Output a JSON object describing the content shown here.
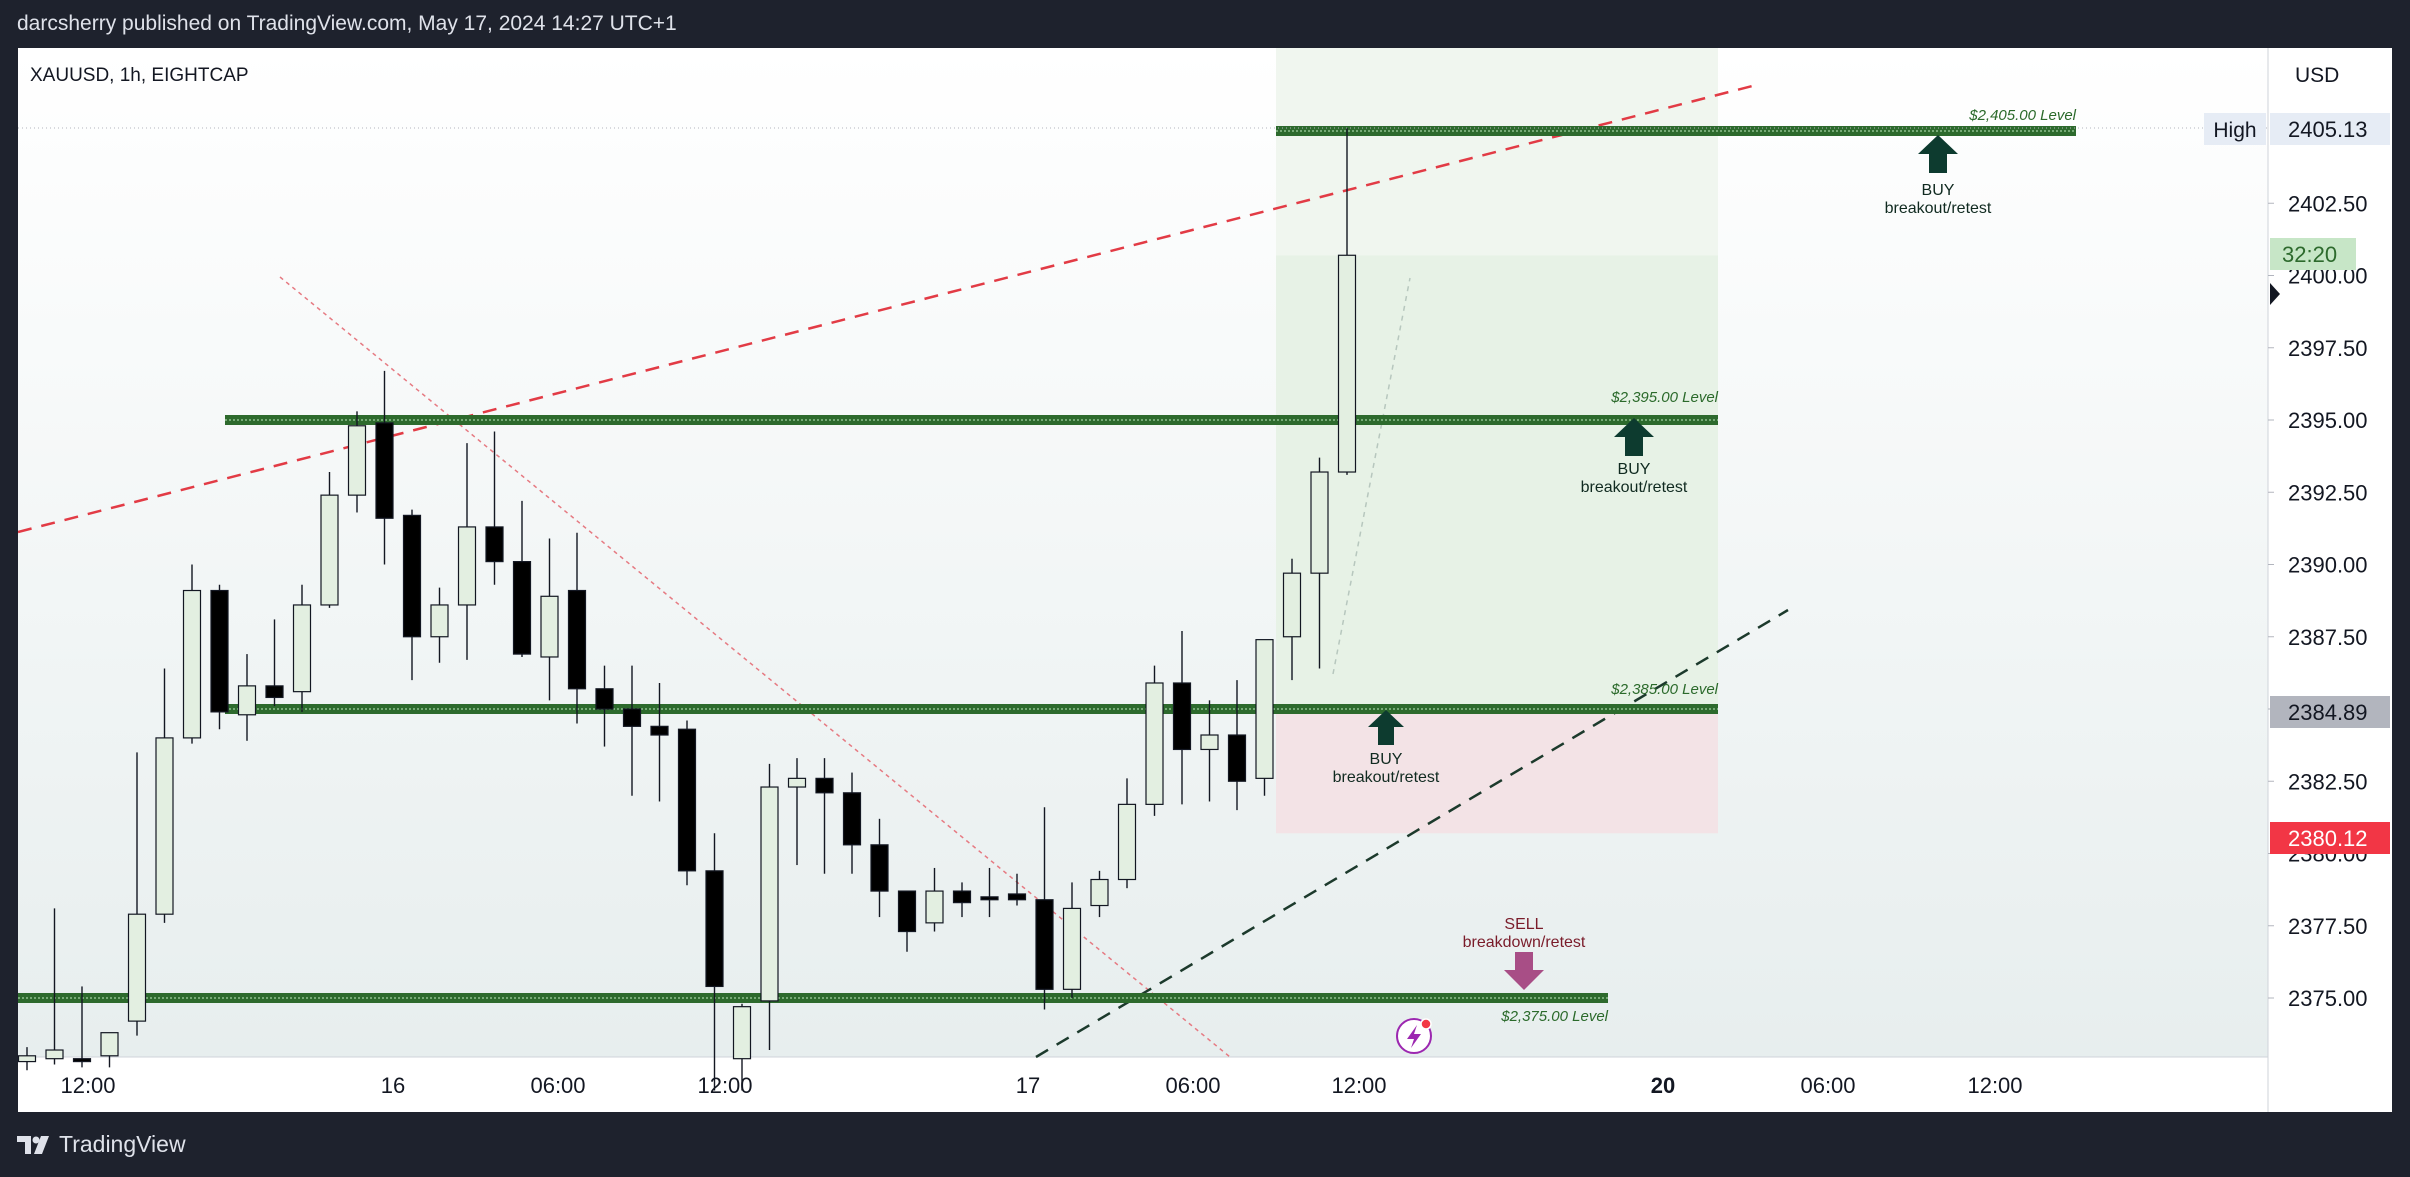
{
  "banner": {
    "text": "darcsherry published on TradingView.com, May 17, 2024 14:27 UTC+1"
  },
  "brand": {
    "name": "TradingView"
  },
  "symbol": {
    "label": "XAUUSD, 1h, EIGHTCAP"
  },
  "currency_button": "USD",
  "price_labels": {
    "high_tag": "High",
    "high_value": "2405.13",
    "countdown": "32:20",
    "last_price": "2384.89",
    "red_price": "2380.12"
  },
  "annotations": {
    "level_2405": "$2,405.00 Level",
    "level_2395": "$2,395.00 Level",
    "level_2385": "$2,385.00 Level",
    "level_2375": "$2,375.00 Level",
    "buy": "BUY",
    "breakout_retest": "breakout/retest",
    "sell": "SELL",
    "breakdown_retest": "breakdown/retest"
  },
  "colors": {
    "banner_bg": "#1e222d",
    "plot_bg_top": "#ffffff",
    "plot_bg_bottom": "#e9efef",
    "candle_up_fill": "#e3efe1",
    "candle_down_fill": "#000000",
    "level_green": "#2d6a2d",
    "trend_red": "#e23b45",
    "trend_dark": "#1c3a2c",
    "profit_zone": "#e7f2e6",
    "loss_zone": "#f3e3e6",
    "buy_arrow": "#0d3b2f",
    "sell_arrow": "#a84e86",
    "price_red": "#f23645",
    "price_gray": "#b2b5be",
    "countdown_green": "#c7e6c7"
  },
  "chart_data": {
    "type": "candlestick",
    "symbol": "XAUUSD",
    "interval": "1h",
    "x_tick_labels": [
      "12:00",
      "16",
      "06:00",
      "12:00",
      "17",
      "06:00",
      "12:00",
      "20",
      "06:00",
      "12:00"
    ],
    "y_tick_labels": [
      "2375.00",
      "2377.50",
      "2380.00",
      "2382.50",
      "2385.00",
      "2387.50",
      "2390.00",
      "2392.50",
      "2395.00",
      "2397.50",
      "2400.00",
      "2402.50"
    ],
    "ylim": [
      2372.9,
      2407.3
    ],
    "candles": [
      {
        "o": 2372.8,
        "h": 2373.3,
        "l": 2372.5,
        "c": 2373.0
      },
      {
        "o": 2372.9,
        "h": 2378.1,
        "l": 2372.7,
        "c": 2373.2
      },
      {
        "o": 2372.9,
        "h": 2375.4,
        "l": 2372.6,
        "c": 2372.8
      },
      {
        "o": 2373.0,
        "h": 2373.8,
        "l": 2372.6,
        "c": 2373.8
      },
      {
        "o": 2374.2,
        "h": 2383.5,
        "l": 2373.7,
        "c": 2377.9
      },
      {
        "o": 2377.9,
        "h": 2386.4,
        "l": 2377.6,
        "c": 2384.0
      },
      {
        "o": 2384.0,
        "h": 2390.0,
        "l": 2383.8,
        "c": 2389.1
      },
      {
        "o": 2389.1,
        "h": 2389.3,
        "l": 2384.3,
        "c": 2384.9
      },
      {
        "o": 2384.8,
        "h": 2386.9,
        "l": 2383.9,
        "c": 2385.8
      },
      {
        "o": 2385.8,
        "h": 2388.1,
        "l": 2385.1,
        "c": 2385.4
      },
      {
        "o": 2385.6,
        "h": 2389.3,
        "l": 2384.9,
        "c": 2388.6
      },
      {
        "o": 2388.6,
        "h": 2393.2,
        "l": 2388.5,
        "c": 2392.4
      },
      {
        "o": 2392.4,
        "h": 2395.3,
        "l": 2391.8,
        "c": 2394.8
      },
      {
        "o": 2394.9,
        "h": 2396.7,
        "l": 2390.0,
        "c": 2391.6
      },
      {
        "o": 2391.7,
        "h": 2391.9,
        "l": 2386.0,
        "c": 2387.5
      },
      {
        "o": 2387.5,
        "h": 2389.2,
        "l": 2386.6,
        "c": 2388.6
      },
      {
        "o": 2388.6,
        "h": 2394.2,
        "l": 2386.7,
        "c": 2391.3
      },
      {
        "o": 2391.3,
        "h": 2394.6,
        "l": 2389.3,
        "c": 2390.1
      },
      {
        "o": 2390.1,
        "h": 2392.2,
        "l": 2386.8,
        "c": 2386.9
      },
      {
        "o": 2386.8,
        "h": 2390.9,
        "l": 2385.3,
        "c": 2388.9
      },
      {
        "o": 2389.1,
        "h": 2391.1,
        "l": 2384.5,
        "c": 2385.7
      },
      {
        "o": 2385.7,
        "h": 2386.5,
        "l": 2383.7,
        "c": 2385.0
      },
      {
        "o": 2385.0,
        "h": 2386.5,
        "l": 2382.0,
        "c": 2384.4
      },
      {
        "o": 2384.4,
        "h": 2385.9,
        "l": 2381.8,
        "c": 2384.1
      },
      {
        "o": 2384.3,
        "h": 2384.6,
        "l": 2378.9,
        "c": 2379.4
      },
      {
        "o": 2379.4,
        "h": 2380.7,
        "l": 2371.8,
        "c": 2375.4
      },
      {
        "o": 2372.9,
        "h": 2374.8,
        "l": 2371.8,
        "c": 2374.7
      },
      {
        "o": 2374.9,
        "h": 2383.1,
        "l": 2373.2,
        "c": 2382.3
      },
      {
        "o": 2382.3,
        "h": 2383.3,
        "l": 2379.6,
        "c": 2382.6
      },
      {
        "o": 2382.6,
        "h": 2383.3,
        "l": 2379.3,
        "c": 2382.1
      },
      {
        "o": 2382.1,
        "h": 2382.8,
        "l": 2379.3,
        "c": 2380.3
      },
      {
        "o": 2380.3,
        "h": 2381.2,
        "l": 2377.8,
        "c": 2378.7
      },
      {
        "o": 2378.7,
        "h": 2378.7,
        "l": 2376.6,
        "c": 2377.3
      },
      {
        "o": 2377.6,
        "h": 2379.5,
        "l": 2377.3,
        "c": 2378.7
      },
      {
        "o": 2378.7,
        "h": 2379.0,
        "l": 2377.8,
        "c": 2378.3
      },
      {
        "o": 2378.5,
        "h": 2379.5,
        "l": 2377.8,
        "c": 2378.4
      },
      {
        "o": 2378.6,
        "h": 2379.3,
        "l": 2378.2,
        "c": 2378.4
      },
      {
        "o": 2378.4,
        "h": 2381.6,
        "l": 2374.6,
        "c": 2375.3
      },
      {
        "o": 2375.3,
        "h": 2379.0,
        "l": 2375.0,
        "c": 2378.1
      },
      {
        "o": 2378.2,
        "h": 2379.4,
        "l": 2377.8,
        "c": 2379.1
      },
      {
        "o": 2379.1,
        "h": 2382.6,
        "l": 2378.8,
        "c": 2381.7
      },
      {
        "o": 2381.7,
        "h": 2386.5,
        "l": 2381.3,
        "c": 2385.9
      },
      {
        "o": 2385.9,
        "h": 2387.7,
        "l": 2381.7,
        "c": 2383.6
      },
      {
        "o": 2383.6,
        "h": 2385.3,
        "l": 2381.8,
        "c": 2384.1
      },
      {
        "o": 2384.1,
        "h": 2386.0,
        "l": 2381.5,
        "c": 2382.5
      },
      {
        "o": 2382.6,
        "h": 2387.4,
        "l": 2382.0,
        "c": 2387.4
      },
      {
        "o": 2387.5,
        "h": 2390.2,
        "l": 2386.0,
        "c": 2389.7
      },
      {
        "o": 2389.7,
        "h": 2393.7,
        "l": 2386.4,
        "c": 2393.2
      },
      {
        "o": 2393.2,
        "h": 2405.1,
        "l": 2393.1,
        "c": 2400.7
      }
    ],
    "horizontal_levels": [
      2405.0,
      2395.0,
      2385.0,
      2375.0
    ],
    "range_highlight": {
      "top": 2407.3,
      "mid": 2400.7,
      "entry": 2385.0,
      "bottom": 2380.7
    },
    "high": 2405.13,
    "last_price": 2384.89
  }
}
